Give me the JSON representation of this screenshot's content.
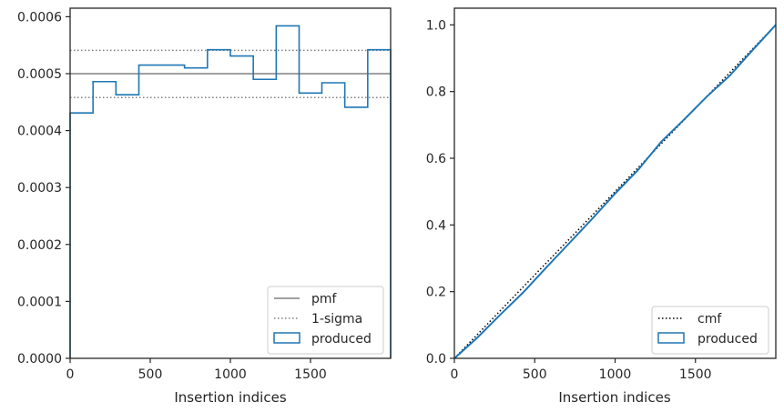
{
  "chart_data": [
    {
      "type": "histogram-step",
      "xlabel": "Insertion indices",
      "ylabel": "",
      "xlim": [
        0,
        2000
      ],
      "ylim": [
        0,
        0.000615
      ],
      "xticks": [
        0,
        500,
        1000,
        1500
      ],
      "xtick_labels": [
        "0",
        "500",
        "1000",
        "1500"
      ],
      "yticks": [
        0,
        0.0001,
        0.0002,
        0.0003,
        0.0004,
        0.0005,
        0.0006
      ],
      "ytick_labels": [
        "0.0000",
        "0.0001",
        "0.0002",
        "0.0003",
        "0.0004",
        "0.0005",
        "0.0006"
      ],
      "grid": false,
      "legend_position": "lower right",
      "legend": [
        {
          "label": "pmf",
          "style": "solid-line",
          "color": "#808080"
        },
        {
          "label": "1-sigma",
          "style": "dotted-line",
          "color": "#808080"
        },
        {
          "label": "produced",
          "style": "box",
          "color": "#1f77b4"
        }
      ],
      "pmf": 0.0005,
      "sigma_band": [
        0.000458,
        0.000541
      ],
      "produced": {
        "bin_edges": [
          0,
          143,
          286,
          429,
          571,
          714,
          857,
          1000,
          1143,
          1286,
          1429,
          1571,
          1714,
          1857,
          2000
        ],
        "values": [
          0.000431,
          0.000486,
          0.000463,
          0.000515,
          0.000515,
          0.00051,
          0.000542,
          0.000531,
          0.00049,
          0.000584,
          0.000466,
          0.000484,
          0.000441,
          0.000542
        ]
      }
    },
    {
      "type": "line",
      "xlabel": "Insertion indices",
      "ylabel": "",
      "xlim": [
        0,
        2000
      ],
      "ylim": [
        0,
        1.05
      ],
      "xticks": [
        0,
        500,
        1000,
        1500
      ],
      "xtick_labels": [
        "0",
        "500",
        "1000",
        "1500"
      ],
      "yticks": [
        0.0,
        0.2,
        0.4,
        0.6,
        0.8,
        1.0
      ],
      "ytick_labels": [
        "0.0",
        "0.2",
        "0.4",
        "0.6",
        "0.8",
        "1.0"
      ],
      "grid": false,
      "legend_position": "lower right",
      "legend": [
        {
          "label": "cmf",
          "style": "dotted-line",
          "color": "#000000"
        },
        {
          "label": "produced",
          "style": "box",
          "color": "#1f77b4"
        }
      ],
      "cmf": {
        "x": [
          0,
          2000
        ],
        "y": [
          0,
          1
        ]
      },
      "produced": {
        "x": [
          0,
          143,
          286,
          429,
          571,
          714,
          857,
          1000,
          1143,
          1286,
          1429,
          1571,
          1714,
          1857,
          2000
        ],
        "y": [
          0,
          0.062,
          0.131,
          0.198,
          0.272,
          0.345,
          0.418,
          0.494,
          0.565,
          0.649,
          0.716,
          0.785,
          0.848,
          0.925,
          1.0
        ]
      }
    }
  ]
}
